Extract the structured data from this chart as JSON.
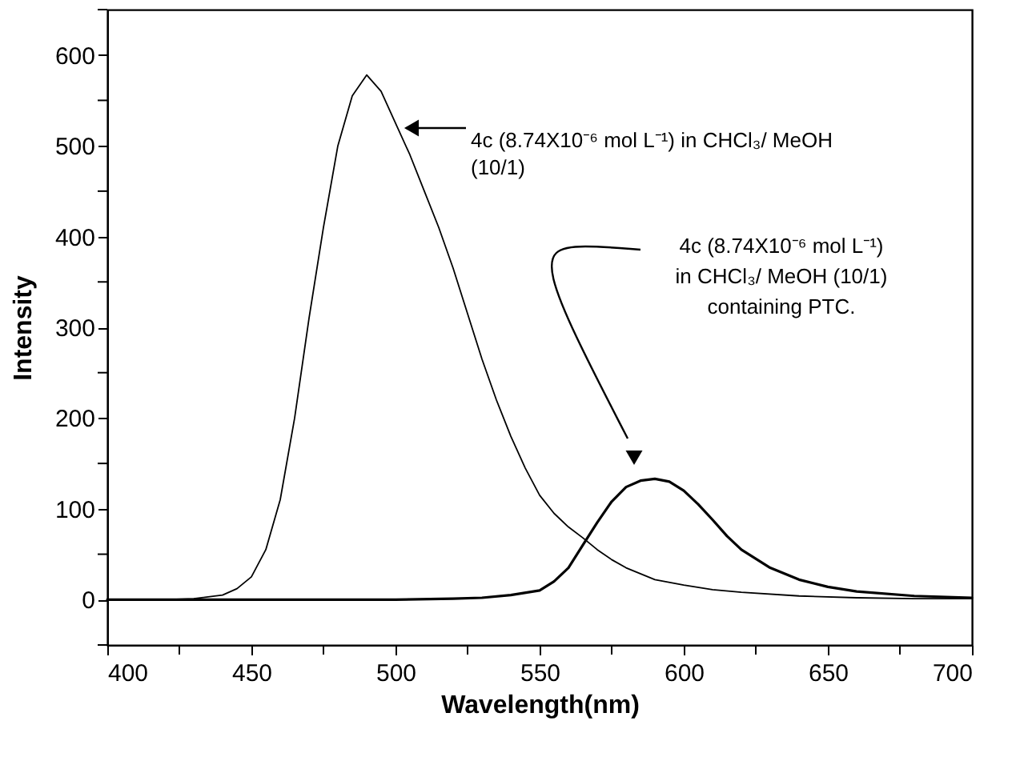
{
  "chart_data": {
    "type": "line",
    "xlabel": "Wavelength(nm)",
    "ylabel": "Intensity",
    "xlim": [
      400,
      700
    ],
    "ylim": [
      -50,
      650
    ],
    "xticks": [
      400,
      {
        "value": 425,
        "label": null
      },
      450,
      {
        "value": 475,
        "label": null
      },
      500,
      {
        "value": 525,
        "label": null
      },
      550,
      {
        "value": 575,
        "label": null
      },
      600,
      {
        "value": 625,
        "label": null
      },
      650,
      {
        "value": 675,
        "label": null
      },
      700
    ],
    "yticks": [
      {
        "value": -50,
        "label": null
      },
      0,
      {
        "value": 50,
        "label": null
      },
      100,
      {
        "value": 150,
        "label": null
      },
      200,
      {
        "value": 250,
        "label": null
      },
      300,
      {
        "value": 350,
        "label": null
      },
      400,
      {
        "value": 450,
        "label": null
      },
      500,
      {
        "value": 550,
        "label": null
      },
      600,
      {
        "value": 650,
        "label": null
      }
    ],
    "grid": false,
    "marker": "none",
    "line_style": "solid",
    "series": [
      {
        "color": "#000000",
        "x": [
          400,
          420,
          430,
          440,
          445,
          450,
          455,
          460,
          465,
          470,
          475,
          480,
          485,
          490,
          495,
          500,
          505,
          510,
          515,
          520,
          525,
          530,
          535,
          540,
          545,
          550,
          555,
          560,
          565,
          570,
          575,
          580,
          590,
          600,
          610,
          620,
          640,
          660,
          680,
          700
        ],
        "values": [
          0,
          0,
          1,
          5,
          12,
          25,
          55,
          110,
          200,
          310,
          410,
          500,
          555,
          578,
          560,
          525,
          490,
          450,
          410,
          365,
          315,
          265,
          220,
          180,
          145,
          115,
          95,
          80,
          68,
          55,
          44,
          35,
          22,
          16,
          11,
          8,
          4,
          2,
          1,
          1
        ]
      },
      {
        "color": "#000000",
        "x": [
          400,
          450,
          500,
          520,
          530,
          540,
          550,
          555,
          560,
          565,
          570,
          575,
          580,
          585,
          590,
          595,
          600,
          605,
          610,
          615,
          620,
          630,
          640,
          650,
          660,
          680,
          700
        ],
        "values": [
          0,
          0,
          0,
          1,
          2,
          5,
          10,
          20,
          35,
          60,
          85,
          108,
          124,
          131,
          133,
          130,
          120,
          105,
          88,
          70,
          55,
          35,
          22,
          14,
          9,
          4,
          2
        ]
      }
    ],
    "annotations": [
      "4c (8.74X10⁻⁶ mol L⁻¹) in CHCl₃/ MeOH\n(10/1)",
      "4c (8.74X10⁻⁶ mol L⁻¹)\nin CHCl₃/ MeOH (10/1)\ncontaining PTC."
    ]
  }
}
